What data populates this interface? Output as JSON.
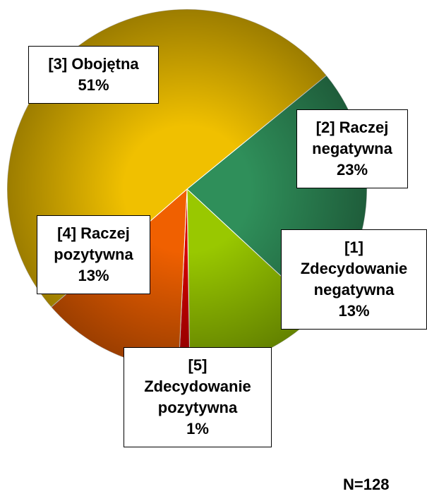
{
  "chart_data": {
    "type": "pie",
    "categories": [
      "[2] Raczej negatywna",
      "[1] Zdecydowanie negatywna",
      "[5] Zdecydowanie pozytywna",
      "[4] Raczej pozytywna",
      "[3] Obojętna"
    ],
    "values": [
      23,
      13,
      1,
      13,
      51
    ],
    "value_labels": [
      "23%",
      "13%",
      "1%",
      "13%",
      "51%"
    ],
    "colors": [
      "#2f8f5a",
      "#99c800",
      "#d40000",
      "#f06000",
      "#f0c000"
    ],
    "annotation": "N=128"
  }
}
